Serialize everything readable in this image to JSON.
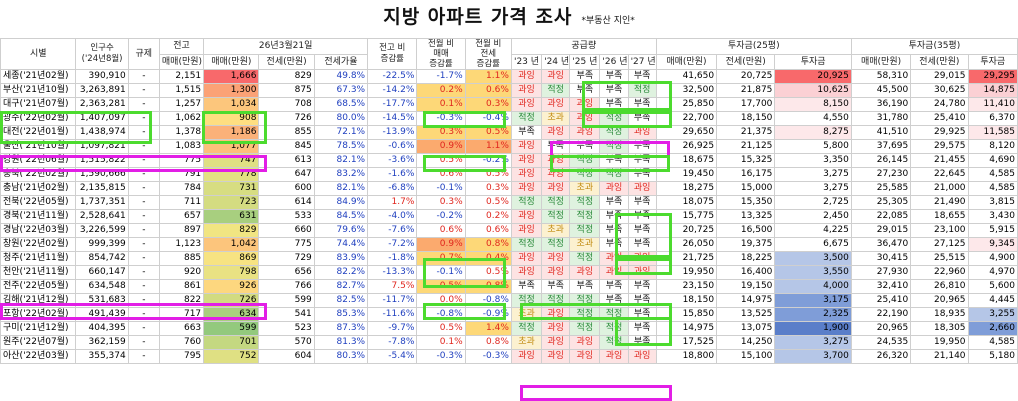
{
  "title": "지방 아파트 가격 조사",
  "subtitle": "*부동산 지인*",
  "headers": {
    "city": "시별",
    "pop": "인구수\n('24년8월)",
    "reg": "규제",
    "prev_high": "전고",
    "prev_sale": "매매(만원)",
    "date_group": "26년3월21일",
    "sale": "매매(만원)",
    "jeonse": "전세(만원)",
    "ratio": "전세가율",
    "vs_high": "전고 비\n증감률",
    "mom_sale": "전월 비\n매매\n증감률",
    "mom_jeonse": "전월 비\n전세\n증감률",
    "supply": "공급량",
    "years": [
      "'23 년",
      "'24 년",
      "'25 년",
      "'26 년",
      "'27 년"
    ],
    "inv25": "투자금(25평)",
    "inv35": "투자금(35평)",
    "inv_sale": "매매(만원)",
    "inv_jeonse": "전세(만원)",
    "inv_amt": "투자금"
  },
  "rows": [
    {
      "city": "세종('21년02월)",
      "pop": "390,910",
      "reg": "-",
      "high": "2,151",
      "sale": "1,666",
      "jeonse": "829",
      "ratio": "49.8%",
      "vsh": "-22.5%",
      "ms": "-1.7%",
      "mj": "1.1%",
      "sup": [
        "과잉",
        "과잉",
        "부족",
        "부족",
        "부족"
      ],
      "s25": "41,650",
      "j25": "20,725",
      "i25": "20,925",
      "s35": "58,310",
      "j35": "29,015",
      "i35": "29,295",
      "salebg": "#f8696b",
      "i25bg": "#f8696b",
      "i35bg": "#f8696b",
      "msbg": "",
      "mjbg": "#fdd878"
    },
    {
      "city": "부산('21년10월)",
      "pop": "3,263,891",
      "reg": "-",
      "high": "1,515",
      "sale": "1,300",
      "jeonse": "875",
      "ratio": "67.3%",
      "vsh": "-14.2%",
      "ms": "0.2%",
      "mj": "0.6%",
      "sup": [
        "과잉",
        "적정",
        "부족",
        "부족",
        "적정"
      ],
      "s25": "32,500",
      "j25": "21,875",
      "i25": "10,625",
      "s35": "45,500",
      "j35": "30,625",
      "i35": "14,875",
      "salebg": "#fba276",
      "i25bg": "#fbd0d4",
      "i35bg": "#fbd0d4",
      "msbg": "#fdd878",
      "mjbg": "#fdd878"
    },
    {
      "city": "대구('21년07월)",
      "pop": "2,363,281",
      "reg": "-",
      "high": "1,257",
      "sale": "1,034",
      "jeonse": "708",
      "ratio": "68.5%",
      "vsh": "-17.7%",
      "ms": "0.1%",
      "mj": "0.3%",
      "sup": [
        "과잉",
        "과잉",
        "과잉",
        "부족",
        "부족"
      ],
      "s25": "25,850",
      "j25": "17,700",
      "i25": "8,150",
      "s35": "36,190",
      "j35": "24,780",
      "i35": "11,410",
      "salebg": "#fcc67c",
      "i25bg": "#fde8ea",
      "i35bg": "#fde8ea",
      "msbg": "#fdd878",
      "mjbg": "#fdd878"
    },
    {
      "city": "광주('22년02월)",
      "pop": "1,407,097",
      "reg": "-",
      "high": "1,062",
      "sale": "908",
      "jeonse": "726",
      "ratio": "80.0%",
      "vsh": "-14.5%",
      "ms": "-0.3%",
      "mj": "-0.4%",
      "sup": [
        "적정",
        "초과",
        "과잉",
        "적정",
        "부족"
      ],
      "s25": "22,700",
      "j25": "18,150",
      "i25": "4,550",
      "s35": "31,780",
      "j35": "25,410",
      "i35": "6,370",
      "salebg": "#fede81",
      "i25bg": "",
      "i35bg": "",
      "msbg": "",
      "mjbg": ""
    },
    {
      "city": "대전('22년01월)",
      "pop": "1,438,974",
      "reg": "-",
      "high": "1,378",
      "sale": "1,186",
      "jeonse": "855",
      "ratio": "72.1%",
      "vsh": "-13.9%",
      "ms": "0.3%",
      "mj": "0.5%",
      "sup": [
        "부족",
        "과잉",
        "과잉",
        "적정",
        "과잉"
      ],
      "s25": "29,650",
      "j25": "21,375",
      "i25": "8,275",
      "s35": "41,510",
      "j35": "29,925",
      "i35": "11,585",
      "salebg": "#fbb179",
      "i25bg": "#fde8ea",
      "i35bg": "#fde8ea",
      "msbg": "#fdd878",
      "mjbg": "#fdd878"
    },
    {
      "city": "울산('21년10월)",
      "pop": "1,097,821",
      "reg": "-",
      "high": "1,083",
      "sale": "1,077",
      "jeonse": "845",
      "ratio": "78.5%",
      "vsh": "-0.6%",
      "ms": "0.9%",
      "mj": "1.1%",
      "sup": [
        "과잉",
        "부족",
        "부족",
        "적정",
        "부족"
      ],
      "s25": "26,925",
      "j25": "21,125",
      "i25": "5,800",
      "s35": "37,695",
      "j35": "29,575",
      "i35": "8,120",
      "salebg": "#fcc07b",
      "i25bg": "",
      "i35bg": "",
      "msbg": "#fbaa6e",
      "mjbg": "#fbaa6e"
    },
    {
      "city": "강원('22년06월)",
      "pop": "1,515,822",
      "reg": "-",
      "high": "775",
      "sale": "747",
      "jeonse": "613",
      "ratio": "82.1%",
      "vsh": "-3.6%",
      "ms": "0.5%",
      "mj": "-0.2%",
      "sup": [
        "과잉",
        "과잉",
        "적정",
        "부족",
        "부족"
      ],
      "s25": "18,675",
      "j25": "15,325",
      "i25": "3,350",
      "s35": "26,145",
      "j35": "21,455",
      "i35": "4,690",
      "salebg": "#dfe083",
      "i25bg": "",
      "i35bg": "",
      "msbg": "",
      "mjbg": ""
    },
    {
      "city": "충북('22년02월)",
      "pop": "1,590,666",
      "reg": "-",
      "high": "791",
      "sale": "778",
      "jeonse": "647",
      "ratio": "83.2%",
      "vsh": "-1.6%",
      "ms": "0.6%",
      "mj": "0.5%",
      "sup": [
        "과잉",
        "과잉",
        "적정",
        "적정",
        "부족"
      ],
      "s25": "19,450",
      "j25": "16,175",
      "i25": "3,275",
      "s35": "27,230",
      "j35": "22,645",
      "i35": "4,585",
      "salebg": "#e3e283",
      "i25bg": "",
      "i35bg": "",
      "msbg": "",
      "mjbg": ""
    },
    {
      "city": "충남('21년02월)",
      "pop": "2,135,815",
      "reg": "-",
      "high": "784",
      "sale": "731",
      "jeonse": "600",
      "ratio": "82.1%",
      "vsh": "-6.8%",
      "ms": "-0.1%",
      "mj": "0.3%",
      "sup": [
        "과잉",
        "과잉",
        "초과",
        "과잉",
        "과잉"
      ],
      "s25": "18,275",
      "j25": "15,000",
      "i25": "3,275",
      "s35": "25,585",
      "j35": "21,000",
      "i35": "4,585",
      "salebg": "#d7dd82",
      "i25bg": "",
      "i35bg": "",
      "msbg": "",
      "mjbg": ""
    },
    {
      "city": "전북('22년05월)",
      "pop": "1,737,351",
      "reg": "-",
      "high": "711",
      "sale": "723",
      "jeonse": "614",
      "ratio": "84.9%",
      "vsh": "1.7%",
      "ms": "0.3%",
      "mj": "0.5%",
      "sup": [
        "적정",
        "적정",
        "적정",
        "부족",
        "부족"
      ],
      "s25": "18,075",
      "j25": "15,350",
      "i25": "2,725",
      "s35": "25,305",
      "j35": "21,490",
      "i35": "3,815",
      "salebg": "#d4dc81",
      "i25bg": "",
      "i35bg": "",
      "msbg": "",
      "mjbg": ""
    },
    {
      "city": "경북('21년11월)",
      "pop": "2,528,641",
      "reg": "-",
      "high": "657",
      "sale": "631",
      "jeonse": "533",
      "ratio": "84.5%",
      "vsh": "-4.0%",
      "ms": "-0.2%",
      "mj": "0.2%",
      "sup": [
        "과잉",
        "적정",
        "적정",
        "부족",
        "부족"
      ],
      "s25": "15,775",
      "j25": "13,325",
      "i25": "2,450",
      "s35": "22,085",
      "j35": "18,655",
      "i35": "3,430",
      "salebg": "#a8cf7f",
      "i25bg": "",
      "i35bg": "",
      "msbg": "",
      "mjbg": ""
    },
    {
      "city": "경남('22년03월)",
      "pop": "3,226,599",
      "reg": "-",
      "high": "897",
      "sale": "829",
      "jeonse": "660",
      "ratio": "79.6%",
      "vsh": "-7.6%",
      "ms": "0.6%",
      "mj": "0.6%",
      "sup": [
        "과잉",
        "초과",
        "적정",
        "부족",
        "부족"
      ],
      "s25": "20,725",
      "j25": "16,500",
      "i25": "4,225",
      "s35": "29,015",
      "j35": "23,100",
      "i35": "5,915",
      "salebg": "#f1e582",
      "i25bg": "",
      "i35bg": "",
      "msbg": "",
      "mjbg": ""
    },
    {
      "city": "창원('22년02월)",
      "pop": "999,399",
      "reg": "-",
      "high": "1,123",
      "sale": "1,042",
      "jeonse": "775",
      "ratio": "74.4%",
      "vsh": "-7.2%",
      "ms": "0.9%",
      "mj": "0.8%",
      "sup": [
        "적정",
        "적정",
        "초과",
        "부족",
        "부족"
      ],
      "s25": "26,050",
      "j25": "19,375",
      "i25": "6,675",
      "s35": "36,470",
      "j35": "27,125",
      "i35": "9,345",
      "salebg": "#fcc57c",
      "i25bg": "",
      "i35bg": "#fde8ea",
      "msbg": "#fbaa6e",
      "mjbg": "#fdd878"
    },
    {
      "city": "청주('21년11월)",
      "pop": "854,742",
      "reg": "-",
      "high": "885",
      "sale": "869",
      "jeonse": "729",
      "ratio": "83.9%",
      "vsh": "-1.8%",
      "ms": "0.7%",
      "mj": "0.4%",
      "sup": [
        "과잉",
        "과잉",
        "적정",
        "과잉",
        "과잉"
      ],
      "s25": "21,725",
      "j25": "18,225",
      "i25": "3,500",
      "s35": "30,415",
      "j35": "25,515",
      "i35": "4,900",
      "salebg": "#f7e382",
      "i25bg": "#b5c6e7",
      "i35bg": "",
      "msbg": "#fdd878",
      "mjbg": "#fdd878"
    },
    {
      "city": "천안('21년11월)",
      "pop": "660,147",
      "reg": "-",
      "high": "920",
      "sale": "798",
      "jeonse": "656",
      "ratio": "82.2%",
      "vsh": "-13.3%",
      "ms": "-0.1%",
      "mj": "0.5%",
      "sup": [
        "과잉",
        "과잉",
        "과잉",
        "과잉",
        "과잉"
      ],
      "s25": "19,950",
      "j25": "16,400",
      "i25": "3,550",
      "s35": "27,930",
      "j35": "22,960",
      "i35": "4,970",
      "salebg": "#e9e283",
      "i25bg": "#b5c6e7",
      "i35bg": "",
      "msbg": "",
      "mjbg": ""
    },
    {
      "city": "전주('22년05월)",
      "pop": "634,548",
      "reg": "-",
      "high": "861",
      "sale": "926",
      "jeonse": "766",
      "ratio": "82.7%",
      "vsh": "7.5%",
      "ms": "0.5%",
      "mj": "0.8%",
      "sup": [
        "부족",
        "부족",
        "부족",
        "부족",
        "부족"
      ],
      "s25": "23,150",
      "j25": "19,150",
      "i25": "4,000",
      "s35": "32,410",
      "j35": "26,810",
      "i35": "5,600",
      "salebg": "#fdd77f",
      "i25bg": "#b5c6e7",
      "i35bg": "",
      "msbg": "#fdd878",
      "mjbg": "#fdd878"
    },
    {
      "city": "김해('21년12월)",
      "pop": "531,683",
      "reg": "-",
      "high": "822",
      "sale": "726",
      "jeonse": "599",
      "ratio": "82.5%",
      "vsh": "-11.7%",
      "ms": "0.0%",
      "mj": "-0.8%",
      "sup": [
        "적정",
        "적정",
        "적정",
        "부족",
        "부족"
      ],
      "s25": "18,150",
      "j25": "14,975",
      "i25": "3,175",
      "s35": "25,410",
      "j35": "20,965",
      "i35": "4,445",
      "salebg": "#d2db81",
      "i25bg": "#7f9dd8",
      "i35bg": "",
      "msbg": "",
      "mjbg": ""
    },
    {
      "city": "포항('22년02월)",
      "pop": "491,439",
      "reg": "-",
      "high": "717",
      "sale": "634",
      "jeonse": "541",
      "ratio": "85.3%",
      "vsh": "-11.6%",
      "ms": "-0.8%",
      "mj": "-0.9%",
      "sup": [
        "초과",
        "과잉",
        "적정",
        "적정",
        "부족"
      ],
      "s25": "15,850",
      "j25": "13,525",
      "i25": "2,325",
      "s35": "22,190",
      "j35": "18,935",
      "i35": "3,255",
      "salebg": "#a9cf7f",
      "i25bg": "#7f9dd8",
      "i35bg": "#b5c6e7",
      "msbg": "",
      "mjbg": ""
    },
    {
      "city": "구미('21년12월)",
      "pop": "404,395",
      "reg": "-",
      "high": "663",
      "sale": "599",
      "jeonse": "523",
      "ratio": "87.3%",
      "vsh": "-9.7%",
      "ms": "0.5%",
      "mj": "1.4%",
      "sup": [
        "적정",
        "과잉",
        "적정",
        "적정",
        "부족"
      ],
      "s25": "14,975",
      "j25": "13,075",
      "i25": "1,900",
      "s35": "20,965",
      "j35": "18,305",
      "i35": "2,660",
      "salebg": "#93c97d",
      "i25bg": "#5a7ec9",
      "i35bg": "#7f9dd8",
      "msbg": "",
      "mjbg": "#fdd878"
    },
    {
      "city": "원주('22년07월)",
      "pop": "362,159",
      "reg": "-",
      "high": "760",
      "sale": "701",
      "jeonse": "570",
      "ratio": "81.3%",
      "vsh": "-7.8%",
      "ms": "0.1%",
      "mj": "0.8%",
      "sup": [
        "초과",
        "과잉",
        "과잉",
        "적정",
        "부족"
      ],
      "s25": "17,525",
      "j25": "14,250",
      "i25": "3,275",
      "s35": "24,535",
      "j35": "19,950",
      "i35": "4,585",
      "salebg": "#c4d881",
      "i25bg": "#b5c6e7",
      "i35bg": "",
      "msbg": "",
      "mjbg": ""
    },
    {
      "city": "아산('22년03월)",
      "pop": "355,374",
      "reg": "-",
      "high": "795",
      "sale": "752",
      "jeonse": "604",
      "ratio": "80.3%",
      "vsh": "-5.4%",
      "ms": "-0.3%",
      "mj": "-0.3%",
      "sup": [
        "과잉",
        "과잉",
        "과잉",
        "과잉",
        "과잉"
      ],
      "s25": "18,800",
      "j25": "15,100",
      "i25": "3,700",
      "s35": "26,320",
      "j35": "21,140",
      "i35": "5,180",
      "salebg": "#dfe083",
      "i25bg": "#b5c6e7",
      "i35bg": "",
      "msbg": "",
      "mjbg": ""
    }
  ]
}
